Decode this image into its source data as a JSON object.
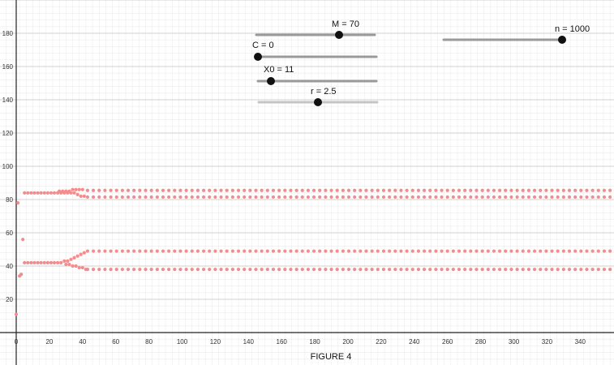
{
  "figure_caption": "FIGURE 4",
  "sliders": [
    {
      "id": "slider-m",
      "label": "M = 70",
      "name": "M",
      "value": 70,
      "fraction": 0.69
    },
    {
      "id": "slider-c",
      "label": "C = 0",
      "name": "C",
      "value": 0,
      "fraction": 0.0
    },
    {
      "id": "slider-x0",
      "label": "X0 = 11",
      "name": "X0",
      "value": 11,
      "fraction": 0.11
    },
    {
      "id": "slider-r",
      "label": "r = 2.5",
      "name": "r",
      "value": 2.5,
      "fraction": 0.5
    },
    {
      "id": "slider-n",
      "label": "n = 1000",
      "name": "n",
      "value": 1000,
      "fraction": 1.0
    }
  ],
  "colors": {
    "point": "#f08d8d",
    "grid_minor": "#ececec",
    "grid_major": "#d2d2d2",
    "axis": "#222222",
    "slider_track": "#9a9a9a",
    "slider_track_light": "#c4c4c4",
    "slider_knob": "#111111"
  },
  "chart_data": {
    "type": "scatter",
    "title": "",
    "xlabel": "",
    "ylabel": "",
    "xlim": [
      0,
      360
    ],
    "ylim": [
      0,
      200
    ],
    "grid": true,
    "x_ticks": [
      0,
      20,
      40,
      60,
      80,
      100,
      120,
      140,
      160,
      180,
      200,
      220,
      240,
      260,
      280,
      300,
      320,
      340
    ],
    "x_tick_labels": [
      "0",
      "20",
      "40",
      "60",
      "80",
      "100",
      "120",
      "140",
      "160",
      "180",
      "200",
      "220",
      "240",
      "260",
      "280",
      "300",
      "320",
      "340"
    ],
    "y_ticks": [
      20,
      40,
      60,
      80,
      100,
      120,
      140,
      160,
      180
    ],
    "y_tick_labels": [
      "20",
      "40",
      "60",
      "80",
      "100",
      "120",
      "140",
      "160",
      "180"
    ],
    "series": [
      {
        "x": [
          0,
          2,
          4
        ],
        "y": [
          11,
          34,
          56
        ]
      },
      {
        "x": [
          1,
          3
        ],
        "y": [
          78,
          35
        ]
      },
      {
        "x": [
          5,
          7,
          9,
          11,
          13,
          15,
          17,
          19,
          21,
          23,
          25,
          27,
          29,
          31,
          33,
          35,
          37,
          39,
          41
        ],
        "y": [
          84,
          84,
          84,
          84,
          84,
          84,
          84,
          84,
          84,
          84,
          84,
          84,
          84,
          84,
          84,
          84,
          83,
          82,
          82
        ]
      },
      {
        "x": [
          5,
          7,
          9,
          11,
          13,
          15,
          17,
          19,
          21,
          23,
          25,
          27,
          29,
          31,
          33,
          35,
          37,
          39,
          41
        ],
        "y": [
          42,
          42,
          42,
          42,
          42,
          42,
          42,
          42,
          42,
          42,
          42,
          42,
          43,
          43,
          44,
          45,
          46,
          47,
          48
        ]
      },
      {
        "x": [
          30,
          32,
          34,
          36,
          38,
          40,
          42
        ],
        "y": [
          41,
          41,
          40,
          40,
          39,
          39,
          38
        ]
      },
      {
        "x": [
          26,
          28,
          30,
          32,
          34,
          36,
          38,
          40
        ],
        "y": [
          85,
          85,
          85,
          85,
          86,
          86,
          86,
          86
        ]
      },
      {
        "x_start": 43,
        "x_end": 358,
        "x_step": 3.5,
        "y": 85.5
      },
      {
        "x_start": 43,
        "x_end": 358,
        "x_step": 3.5,
        "y": 81.5
      },
      {
        "x_start": 43,
        "x_end": 358,
        "x_step": 3.5,
        "y": 49
      },
      {
        "x_start": 43,
        "x_end": 358,
        "x_step": 3.5,
        "y": 38
      }
    ]
  }
}
